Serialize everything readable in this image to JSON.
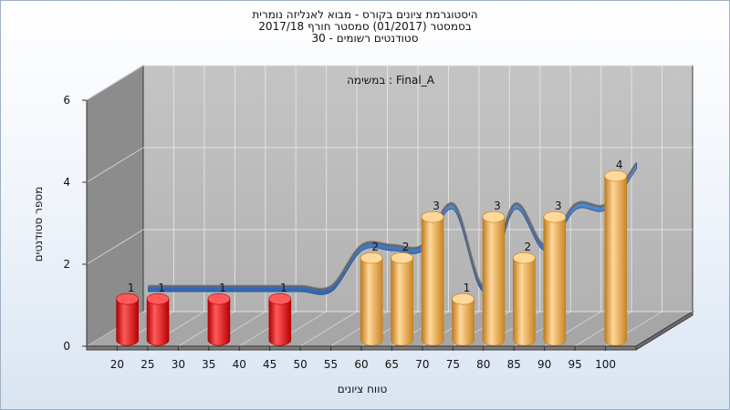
{
  "chart_data": {
    "type": "bar",
    "title_lines": [
      "היסטוגרמת ציונים בקורס - מבוא לאנליזה נומרית",
      "בסמסטר  (01/2017)  סמסטר חורף 2017/18",
      "סטודנטים רשומים - 30"
    ],
    "annotation": "במשימה : Final_A",
    "xlabel": "טווח ציונים",
    "ylabel": "מספר סטודנטים",
    "x_tick_labels": [
      "20",
      "25",
      "30",
      "35",
      "40",
      "45",
      "50",
      "55",
      "60",
      "65",
      "70",
      "75",
      "80",
      "85",
      "90",
      "95",
      "100"
    ],
    "y_tick_labels": [
      "0",
      "2",
      "4",
      "6"
    ],
    "ylim": [
      0,
      6
    ],
    "bars": [
      {
        "x": 20,
        "value": 1,
        "color": "red"
      },
      {
        "x": 25,
        "value": 1,
        "color": "red"
      },
      {
        "x": 35,
        "value": 1,
        "color": "red"
      },
      {
        "x": 45,
        "value": 1,
        "color": "red"
      },
      {
        "x": 60,
        "value": 2,
        "color": "orange"
      },
      {
        "x": 65,
        "value": 2,
        "color": "orange"
      },
      {
        "x": 70,
        "value": 3,
        "color": "orange"
      },
      {
        "x": 75,
        "value": 1,
        "color": "orange"
      },
      {
        "x": 80,
        "value": 3,
        "color": "orange"
      },
      {
        "x": 85,
        "value": 2,
        "color": "orange"
      },
      {
        "x": 90,
        "value": 3,
        "color": "orange"
      },
      {
        "x": 100,
        "value": 4,
        "color": "orange"
      }
    ],
    "trend_line": {
      "points": [
        [
          20,
          1
        ],
        [
          25,
          1
        ],
        [
          30,
          1
        ],
        [
          35,
          1
        ],
        [
          40,
          1
        ],
        [
          45,
          1
        ],
        [
          50,
          1
        ],
        [
          55,
          2
        ],
        [
          60,
          2
        ],
        [
          65,
          2
        ],
        [
          70,
          3
        ],
        [
          75,
          1
        ],
        [
          80,
          3
        ],
        [
          85,
          2
        ],
        [
          90,
          3
        ],
        [
          95,
          3
        ],
        [
          100,
          4
        ]
      ],
      "color": "#3a78c8"
    },
    "colors": {
      "red_light": "#ff5a5a",
      "red_dark": "#b00000",
      "orange_light": "#ffd89a",
      "orange_dark": "#c07a1e",
      "wall": "#b9b9b9",
      "side_wall": "#8c8c8c",
      "floor": "#a6a6a6"
    },
    "grid": true
  }
}
